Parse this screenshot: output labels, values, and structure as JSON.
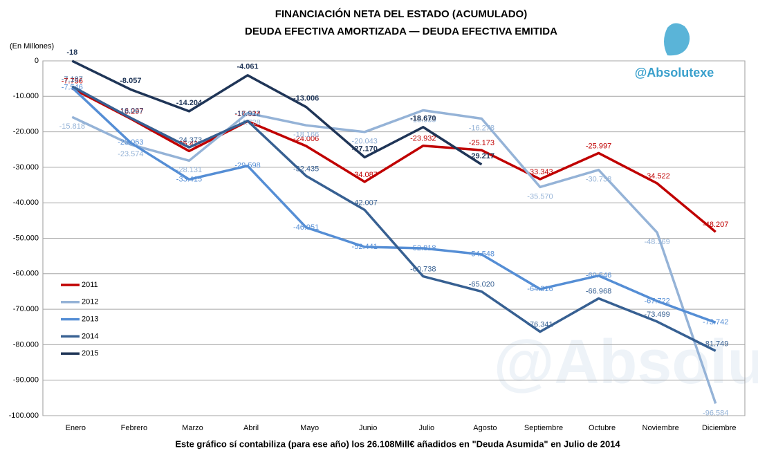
{
  "chart_data": {
    "type": "line",
    "title": [
      "FINANCIACIÓN NETA DEL ESTADO (ACUMULADO)",
      "DEUDA EFECTIVA AMORTIZADA — DEUDA EFECTIVA EMITIDA"
    ],
    "y_label": "(En Millones)",
    "brand": "@Absolutexe",
    "footnote": "Este gráfico sí contabiliza (para ese año) los 26.108Mill€ añadidos en \"Deuda Asumida\" en Julio de 2014",
    "categories": [
      "Enero",
      "Febrero",
      "Marzo",
      "Abril",
      "Mayo",
      "Junio",
      "Julio",
      "Agosto",
      "Septiembre",
      "Octubre",
      "Noviembre",
      "Diciembre"
    ],
    "ylim": [
      -100000,
      0
    ],
    "yticks": [
      {
        "value": 0,
        "label": "0"
      },
      {
        "value": -10000,
        "label": "-10.000"
      },
      {
        "value": -20000,
        "label": "-20.000"
      },
      {
        "value": -30000,
        "label": "-30.000"
      },
      {
        "value": -40000,
        "label": "-40.000"
      },
      {
        "value": -50000,
        "label": "-50.000"
      },
      {
        "value": -60000,
        "label": "-60.000"
      },
      {
        "value": -70000,
        "label": "-70.000"
      },
      {
        "value": -80000,
        "label": "-80.000"
      },
      {
        "value": -90000,
        "label": "-90.000"
      },
      {
        "value": -100000,
        "label": "-100.000"
      }
    ],
    "grid": true,
    "legend": "left",
    "series": [
      {
        "name": "2011",
        "color": "#c00000",
        "values": [
          -7756,
          -16297,
          -25421,
          -17024,
          -24006,
          -34087,
          -23932,
          -25173,
          -33343,
          -25997,
          -34522,
          -48207
        ],
        "value_labels": [
          "-7.756",
          "-16.297",
          "-25.421",
          "-17.024",
          "-24.006",
          "-34.087",
          "-23.932",
          "-25.173",
          "-33.343",
          "-25.997",
          "-34.522",
          "-48.207"
        ]
      },
      {
        "name": "2012",
        "color": "#95b3d7",
        "values": [
          -15818,
          -23574,
          -28131,
          -14728,
          -18166,
          -20043,
          -13935,
          -16278,
          -35570,
          -30738,
          -48369,
          -96584
        ],
        "value_labels": [
          "-15.818",
          "-23.574",
          "-28.131",
          "-14.728",
          "-18.166",
          "-20.043",
          "-13.935",
          "-16.278",
          "-35.570",
          "-30.738",
          "-48.369",
          "-96.584"
        ]
      },
      {
        "name": "2013",
        "color": "#558ed5",
        "values": [
          -7546,
          -23063,
          -33415,
          -29598,
          -46951,
          -52441,
          -52818,
          -54548,
          -64316,
          -60546,
          -67722,
          -73742
        ],
        "value_labels": [
          "-7.546",
          "-23.063",
          "-33.415",
          "-29.598",
          "-46.951",
          "-52.441",
          "-52.818",
          "-54.548",
          "-64.316",
          "-60.546",
          "-67.722",
          "-73.742"
        ]
      },
      {
        "name": "2014",
        "color": "#376092",
        "values": [
          -7187,
          -16067,
          -24373,
          -16912,
          -32435,
          -42007,
          -60738,
          -65020,
          -76341,
          -66968,
          -73499,
          -81749
        ],
        "value_labels": [
          "-7.187",
          "-16.067",
          "-24.373",
          "-16.912",
          "-32.435",
          "-42.007",
          "-60.738",
          "-65.020",
          "-76.341",
          "-66.968",
          "-73.499",
          "-81.749"
        ]
      },
      {
        "name": "2015",
        "color": "#1f3557",
        "values": [
          -18,
          -8057,
          -14204,
          -4061,
          -13006,
          -27170,
          -18670,
          -29217,
          null,
          null,
          null,
          null
        ],
        "value_labels": [
          "-18",
          "-8.057",
          "-14.204",
          "-4.061",
          "-13.006",
          "-27.170",
          "-18.670",
          "-29.217",
          null,
          null,
          null,
          null
        ]
      }
    ]
  }
}
